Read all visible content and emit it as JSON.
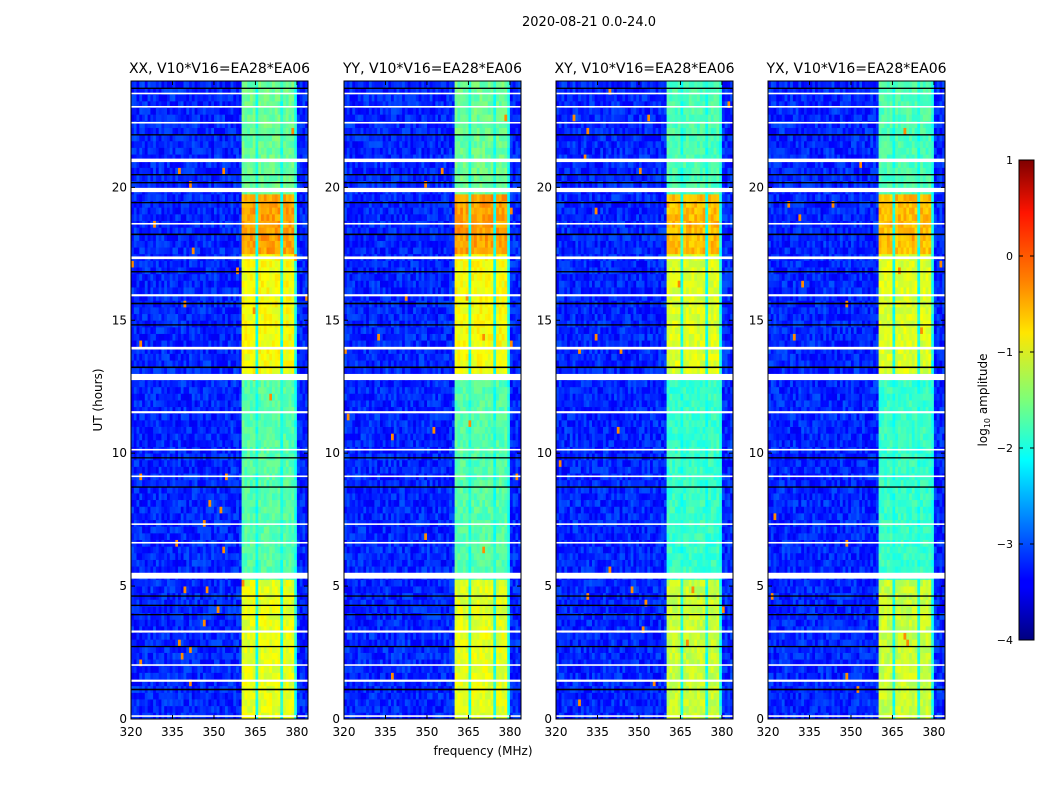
{
  "chart_data": {
    "type": "heatmap",
    "title": "2020-08-21 0.0-24.0",
    "xlabel": "frequency (MHz)",
    "ylabel": "UT (hours)",
    "xlim": [
      320,
      384
    ],
    "ylim": [
      0,
      24
    ],
    "xticks": [
      320,
      335,
      350,
      365,
      380
    ],
    "yticks": [
      0,
      5,
      10,
      15,
      20
    ],
    "panels": [
      {
        "title": "XX, V10*V16=EA28*EA06",
        "band_offset": 0.0
      },
      {
        "title": "YY, V10*V16=EA28*EA06",
        "band_offset": 0.0
      },
      {
        "title": "XY, V10*V16=EA28*EA06",
        "band_offset": -0.15
      },
      {
        "title": "YX, V10*V16=EA28*EA06",
        "band_offset": -0.15
      }
    ],
    "colorbar": {
      "label_prefix": "log",
      "label_sub": "10",
      "label_suffix": " amplitude",
      "range": [
        -4,
        1
      ],
      "ticks": [
        "−4",
        "−3",
        "−2",
        "−1",
        "0",
        "1"
      ],
      "tick_values": [
        -4,
        -3,
        -2,
        -1,
        0,
        1
      ],
      "colormap": "jet"
    },
    "model": {
      "background_log_amplitude": -3.2,
      "rfi_band_mhz": [
        360.5,
        380
      ],
      "rfi_subbands_mhz": [
        [
          360.5,
          365.5
        ],
        [
          366,
          370
        ],
        [
          370.5,
          374.5
        ],
        [
          375,
          379.5
        ]
      ],
      "band_gap_level": -2.0,
      "band_levels": [
        {
          "t": [
            0,
            3.2
          ],
          "level": -1.0
        },
        {
          "t": [
            3.2,
            5.3
          ],
          "level": -1.0
        },
        {
          "t": [
            5.3,
            12.7
          ],
          "level": -1.7
        },
        {
          "t": [
            12.9,
            17.5
          ],
          "level": -0.9
        },
        {
          "t": [
            17.5,
            19.8
          ],
          "level": -0.4
        },
        {
          "t": [
            20.0,
            24
          ],
          "level": -1.6
        }
      ],
      "flagged_white_hours": [
        [
          0.08,
          0.14
        ],
        [
          1.4,
          1.48
        ],
        [
          2.0,
          2.06
        ],
        [
          3.25,
          3.33
        ],
        [
          5.28,
          5.5
        ],
        [
          6.6,
          6.66
        ],
        [
          7.3,
          7.36
        ],
        [
          9.1,
          9.16
        ],
        [
          10.1,
          10.16
        ],
        [
          11.5,
          11.58
        ],
        [
          12.75,
          12.98
        ],
        [
          13.9,
          14.0
        ],
        [
          15.9,
          15.98
        ],
        [
          17.3,
          17.4
        ],
        [
          18.6,
          18.66
        ],
        [
          19.82,
          19.98
        ],
        [
          20.95,
          21.08
        ],
        [
          22.4,
          22.46
        ],
        [
          23.0,
          23.06
        ],
        [
          23.5,
          23.56
        ]
      ],
      "flagged_black_hours": [
        [
          1.08,
          1.14
        ],
        [
          2.7,
          2.75
        ],
        [
          3.9,
          3.95
        ],
        [
          4.25,
          4.3
        ],
        [
          4.6,
          4.65
        ],
        [
          8.7,
          8.75
        ],
        [
          9.8,
          9.85
        ],
        [
          13.2,
          13.26
        ],
        [
          14.8,
          14.85
        ],
        [
          15.6,
          15.66
        ],
        [
          16.8,
          16.85
        ],
        [
          18.2,
          18.26
        ],
        [
          19.4,
          19.45
        ],
        [
          20.15,
          20.2
        ],
        [
          20.45,
          20.5
        ],
        [
          21.95,
          22.0
        ],
        [
          23.7,
          23.75
        ]
      ]
    }
  }
}
